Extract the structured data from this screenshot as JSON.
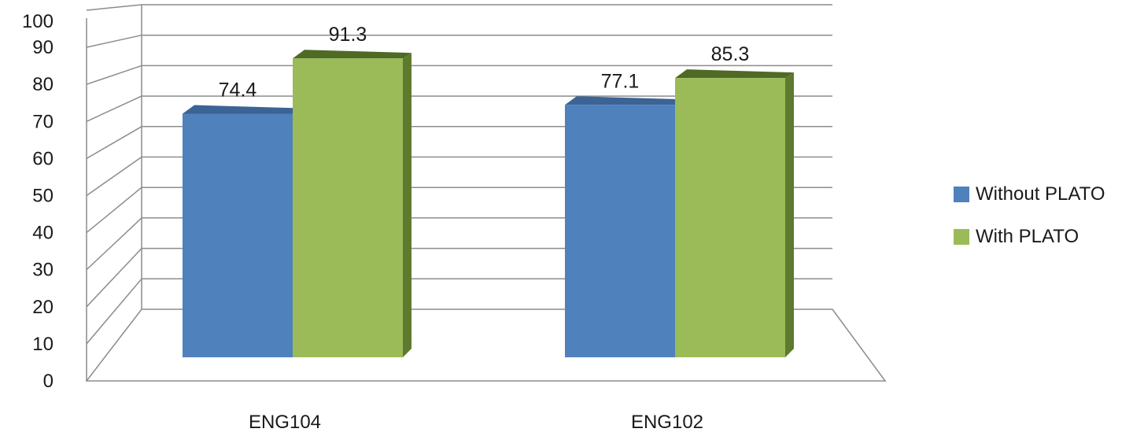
{
  "chart_data": {
    "type": "bar",
    "categories": [
      "ENG104",
      "ENG102"
    ],
    "series": [
      {
        "name": "Without PLATO",
        "values": [
          74.4,
          77.1
        ],
        "color": "#4f81bd"
      },
      {
        "name": "With PLATO",
        "values": [
          91.3,
          85.3
        ],
        "color": "#9bbb59"
      }
    ],
    "value_labels": [
      [
        "74.4",
        "77.1"
      ],
      [
        "91.3",
        "85.3"
      ]
    ],
    "ylim": [
      0,
      100
    ],
    "yticks": [
      "0",
      "10",
      "20",
      "30",
      "40",
      "50",
      "60",
      "70",
      "80",
      "90",
      "100"
    ],
    "title": "",
    "xlabel": "",
    "ylabel": "",
    "grid": true,
    "legend_position": "right",
    "style": "3d-clustered-column"
  }
}
